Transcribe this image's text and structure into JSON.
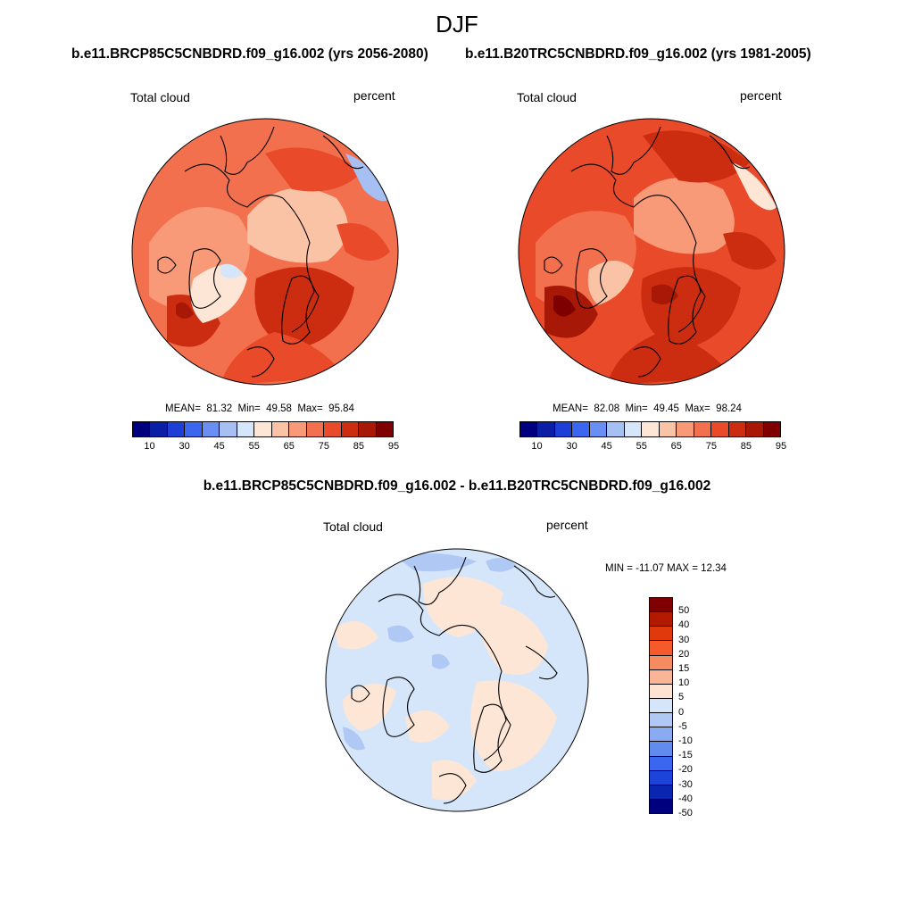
{
  "title": "DJF",
  "panels": [
    {
      "experiment": "b.e11.BRCP85C5CNBDRD.f09_g16.002 (yrs 2056-2080)",
      "variable": "Total cloud",
      "units": "percent",
      "mean_label": "MEAN=",
      "mean": "81.32",
      "min_label": "Min=",
      "min": "49.58",
      "max_label": "Max=",
      "max": "95.84"
    },
    {
      "experiment": "b.e11.B20TRC5CNBDRD.f09_g16.002 (yrs 1981-2005)",
      "variable": "Total cloud",
      "units": "percent",
      "mean_label": "MEAN=",
      "mean": "82.08",
      "min_label": "Min=",
      "min": "49.45",
      "max_label": "Max=",
      "max": "98.24"
    }
  ],
  "difference": {
    "title": "b.e11.BRCP85C5CNBDRD.f09_g16.002 - b.e11.B20TRC5CNBDRD.f09_g16.002",
    "variable": "Total cloud",
    "units": "percent",
    "minmax": "MIN = -11.07 MAX =  12.34"
  },
  "colorbar_abs": {
    "colors": [
      "#00007f",
      "#0a1fa3",
      "#1e3fd6",
      "#3a66f0",
      "#6a8ff2",
      "#a6c0f4",
      "#d6e6fa",
      "#fde6d6",
      "#fbc3a6",
      "#f89a78",
      "#f2704e",
      "#e84a2a",
      "#cc2d10",
      "#a81806",
      "#7f0000"
    ],
    "ticks": [
      "10",
      "30",
      "45",
      "55",
      "65",
      "75",
      "85",
      "95"
    ]
  },
  "colorbar_diff": {
    "colors": [
      "#7f0000",
      "#b21a00",
      "#e03a0c",
      "#f45a2a",
      "#f68a60",
      "#f9b595",
      "#fde3d0",
      "#d6e6fa",
      "#b0c8f4",
      "#8aabf2",
      "#628bf0",
      "#3a66f0",
      "#1c44d8",
      "#0a26b0",
      "#00007f"
    ],
    "ticks": [
      "50",
      "40",
      "30",
      "20",
      "15",
      "10",
      "5",
      "0",
      "-5",
      "-10",
      "-15",
      "-20",
      "-30",
      "-40",
      "-50"
    ]
  }
}
